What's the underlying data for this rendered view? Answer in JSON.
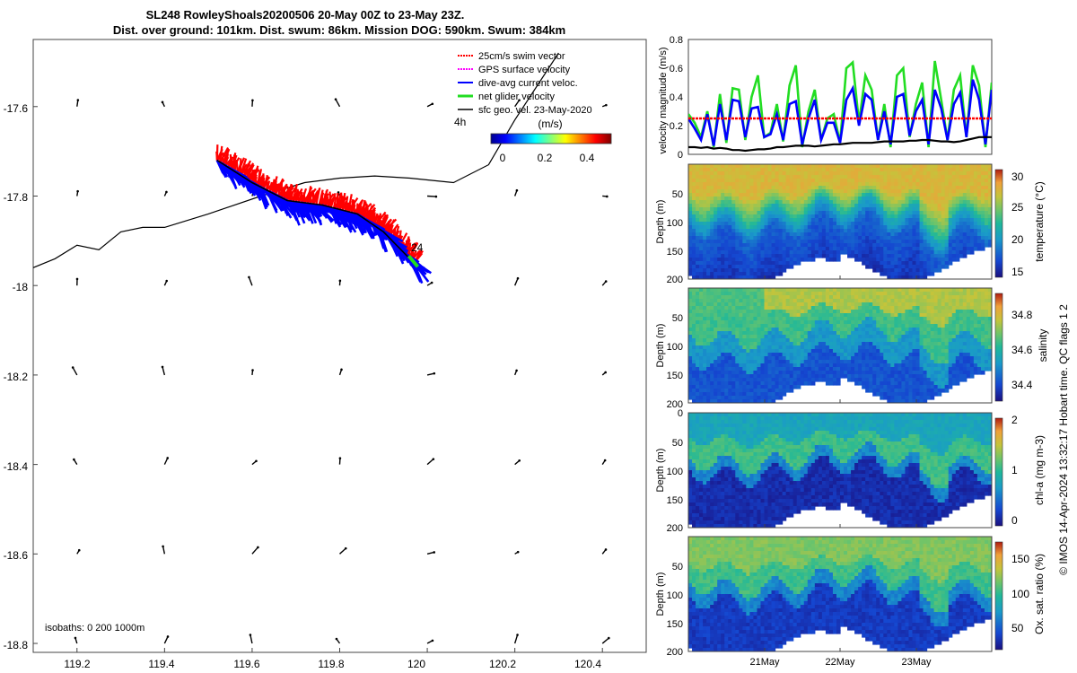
{
  "title": {
    "line1": "SL248 RowleyShoals20200506 20-May 00Z to 23-May 23Z.",
    "line2": "Dist. over ground: 101km. Dist. swum: 86km. Mission DOG: 590km. Swum: 384km"
  },
  "footer": "© IMOS 14-Apr-2024 13:32:17 Hobart time. QC flags 1  2",
  "colors": {
    "swim": "#ff0000",
    "gps": "#ff00ff",
    "current": "#0000ff",
    "net": "#22dd22",
    "geo": "#000000"
  },
  "chart_data": [
    {
      "type": "scatter",
      "name": "map",
      "xlim": [
        119.1,
        120.5
      ],
      "ylim": [
        -18.82,
        -17.45
      ],
      "x_ticks": [
        "119.2",
        "119.4",
        "119.6",
        "119.8",
        "120",
        "120.2",
        "120.4"
      ],
      "y_ticks": [
        "-17.6",
        "-17.8",
        "-18",
        "-18.2",
        "-18.4",
        "-18.6",
        "-18.8"
      ],
      "legend": {
        "position": "top-right",
        "items": [
          {
            "label": "25cm/s swim vector",
            "color": "#ff0000"
          },
          {
            "label": "GPS surface velocity",
            "color": "#ff00ff"
          },
          {
            "label": "dive-avg current veloc.",
            "color": "#0000ff"
          },
          {
            "label": "net glider velocity",
            "color": "#22dd22"
          },
          {
            "label": "sfc geo. vel. 23-May-2020",
            "color": "#000000"
          }
        ]
      },
      "colorbar": {
        "title": "(m/s)",
        "ticks": [
          "0",
          "0.2",
          "0.4"
        ],
        "range": [
          0,
          0.5
        ]
      },
      "labels": {
        "hours": "4h",
        "day": "24",
        "isobaths": "isobaths: 0   200  1000m"
      },
      "glider_track": [
        [
          119.52,
          -17.72
        ],
        [
          119.6,
          -17.77
        ],
        [
          119.68,
          -17.81
        ],
        [
          119.76,
          -17.82
        ],
        [
          119.84,
          -17.84
        ],
        [
          119.9,
          -17.88
        ],
        [
          119.97,
          -17.95
        ]
      ],
      "isobath": [
        [
          119.1,
          -17.96
        ],
        [
          119.15,
          -17.94
        ],
        [
          119.2,
          -17.91
        ],
        [
          119.25,
          -17.92
        ],
        [
          119.3,
          -17.88
        ],
        [
          119.35,
          -17.87
        ],
        [
          119.4,
          -17.87
        ],
        [
          119.5,
          -17.84
        ],
        [
          119.62,
          -17.8
        ],
        [
          119.72,
          -17.77
        ],
        [
          119.8,
          -17.76
        ],
        [
          119.88,
          -17.755
        ],
        [
          119.96,
          -17.76
        ],
        [
          120.06,
          -17.77
        ],
        [
          120.14,
          -17.73
        ],
        [
          120.2,
          -17.63
        ],
        [
          120.3,
          -17.48
        ]
      ]
    },
    {
      "type": "line",
      "name": "velocity",
      "ylabel": "velocity magnitude (m/s)",
      "ylim": [
        0,
        0.8
      ],
      "y_ticks": [
        "0",
        "0.2",
        "0.4",
        "0.6",
        "0.8"
      ],
      "series": [
        {
          "color": "#22dd22",
          "values": [
            0.28,
            0.22,
            0.12,
            0.3,
            0.05,
            0.42,
            0.08,
            0.46,
            0.45,
            0.1,
            0.4,
            0.55,
            0.12,
            0.15,
            0.35,
            0.09,
            0.48,
            0.62,
            0.05,
            0.3,
            0.45,
            0.1,
            0.25,
            0.28,
            0.08,
            0.6,
            0.64,
            0.22,
            0.55,
            0.45,
            0.1,
            0.35,
            0.05,
            0.55,
            0.6,
            0.12,
            0.35,
            0.5,
            0.05,
            0.65,
            0.38,
            0.1,
            0.45,
            0.55,
            0.12,
            0.62,
            0.48,
            0.05,
            0.5
          ]
        },
        {
          "color": "#0000ff",
          "values": [
            0.25,
            0.18,
            0.1,
            0.28,
            0.06,
            0.35,
            0.1,
            0.38,
            0.37,
            0.12,
            0.32,
            0.33,
            0.12,
            0.14,
            0.28,
            0.1,
            0.35,
            0.37,
            0.07,
            0.25,
            0.38,
            0.1,
            0.22,
            0.22,
            0.08,
            0.38,
            0.46,
            0.2,
            0.42,
            0.38,
            0.1,
            0.3,
            0.07,
            0.4,
            0.42,
            0.13,
            0.3,
            0.38,
            0.07,
            0.45,
            0.32,
            0.1,
            0.35,
            0.43,
            0.12,
            0.52,
            0.38,
            0.07,
            0.45
          ]
        },
        {
          "color": "#ff0000",
          "values": [
            0.25,
            0.25,
            0.25,
            0.25,
            0.25,
            0.25,
            0.25,
            0.25,
            0.25,
            0.25,
            0.25,
            0.25,
            0.25,
            0.25,
            0.25,
            0.25,
            0.25,
            0.25,
            0.25,
            0.25,
            0.25,
            0.25,
            0.25,
            0.25,
            0.25,
            0.25,
            0.25,
            0.25,
            0.25,
            0.25,
            0.25,
            0.25,
            0.25,
            0.25,
            0.25,
            0.25,
            0.25,
            0.25,
            0.25,
            0.25,
            0.25,
            0.25,
            0.25,
            0.25,
            0.25,
            0.25,
            0.25,
            0.25,
            0.25
          ]
        },
        {
          "color": "#000000",
          "values": [
            0.05,
            0.05,
            0.045,
            0.05,
            0.04,
            0.045,
            0.04,
            0.03,
            0.03,
            0.025,
            0.03,
            0.035,
            0.035,
            0.04,
            0.05,
            0.05,
            0.055,
            0.06,
            0.06,
            0.06,
            0.055,
            0.06,
            0.065,
            0.07,
            0.07,
            0.075,
            0.08,
            0.08,
            0.08,
            0.08,
            0.085,
            0.09,
            0.09,
            0.09,
            0.09,
            0.095,
            0.095,
            0.1,
            0.1,
            0.095,
            0.09,
            0.09,
            0.085,
            0.09,
            0.1,
            0.11,
            0.12,
            0.12,
            0.12
          ]
        }
      ]
    },
    {
      "type": "heatmap",
      "name": "temperature",
      "ylabel": "Depth (m)",
      "clabel": "temperature (°C)",
      "ylim": [
        200,
        0
      ],
      "y_ticks": [
        "50",
        "100",
        "150",
        "200"
      ],
      "c_ticks": [
        "15",
        "20",
        "25",
        "30"
      ],
      "crange": [
        15,
        31
      ],
      "colormap": "parula"
    },
    {
      "type": "heatmap",
      "name": "salinity",
      "ylabel": "Depth (m)",
      "clabel": "salinity",
      "ylim": [
        200,
        0
      ],
      "y_ticks": [
        "50",
        "100",
        "150",
        "200"
      ],
      "c_ticks": [
        "34.4",
        "34.6",
        "34.8"
      ],
      "crange": [
        34.3,
        34.95
      ],
      "colormap": "parula"
    },
    {
      "type": "heatmap",
      "name": "chlorophyll",
      "ylabel": "Depth (m)",
      "clabel": "chl-a (mg m-3)",
      "ylim": [
        200,
        0
      ],
      "y_ticks": [
        "0",
        "50",
        "100",
        "150",
        "200"
      ],
      "c_ticks": [
        "0",
        "1",
        "2"
      ],
      "crange": [
        0,
        2
      ],
      "colormap": "parula"
    },
    {
      "type": "heatmap",
      "name": "oxygen",
      "ylabel": "Depth (m)",
      "clabel": "Ox. sat. ratio (%)",
      "ylim": [
        200,
        0
      ],
      "y_ticks": [
        "50",
        "100",
        "150",
        "200"
      ],
      "c_ticks": [
        "50",
        "100",
        "150"
      ],
      "crange": [
        25,
        175
      ],
      "colormap": "parula",
      "x_ticks": [
        "21May",
        "22May",
        "23May"
      ]
    }
  ]
}
